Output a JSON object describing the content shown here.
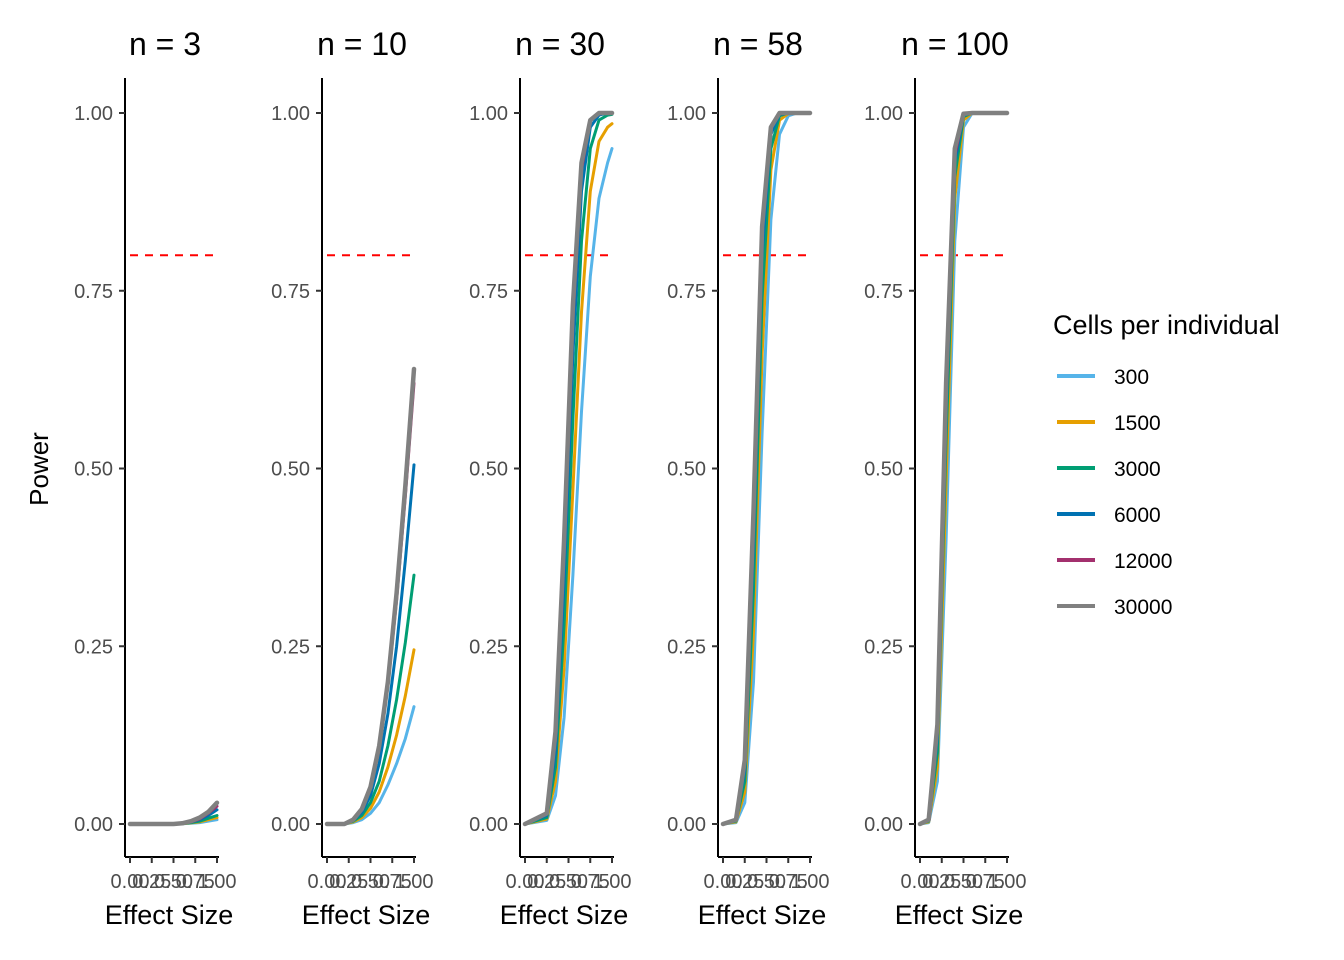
{
  "chart_data": {
    "type": "line",
    "ylabel": "Power",
    "xlabel": "Effect Size",
    "y_ticks": [
      "0.00",
      "0.25",
      "0.50",
      "0.75",
      "1.00"
    ],
    "x_ticks": [
      "0.00",
      "0.25",
      "0.50",
      "0.75",
      "1.00"
    ],
    "xlim": [
      0,
      1
    ],
    "ylim": [
      0,
      1
    ],
    "threshold": 0.8,
    "threshold_color": "#ff0000",
    "grid": false,
    "legend": {
      "title": "Cells per individual",
      "placement": "right"
    },
    "series": [
      {
        "name": "300",
        "color": "#56b4e9"
      },
      {
        "name": "1500",
        "color": "#e69f00"
      },
      {
        "name": "3000",
        "color": "#009e73"
      },
      {
        "name": "6000",
        "color": "#0072b2"
      },
      {
        "name": "12000",
        "color": "#a3306e"
      },
      {
        "name": "30000",
        "color": "#808080"
      }
    ],
    "panels": [
      {
        "title": "n = 3",
        "curves": [
          {
            "series": "300",
            "x": [
              0,
              0.25,
              0.5,
              0.6,
              0.7,
              0.8,
              0.9,
              1.0
            ],
            "y": [
              0,
              0,
              0,
              0.0003,
              0.001,
              0.002,
              0.004,
              0.006
            ]
          },
          {
            "series": "1500",
            "x": [
              0,
              0.25,
              0.5,
              0.6,
              0.7,
              0.8,
              0.9,
              1.0
            ],
            "y": [
              0,
              0,
              0,
              0.0004,
              0.0015,
              0.003,
              0.006,
              0.009
            ]
          },
          {
            "series": "3000",
            "x": [
              0,
              0.25,
              0.5,
              0.6,
              0.7,
              0.8,
              0.9,
              1.0
            ],
            "y": [
              0,
              0,
              0,
              0.0005,
              0.002,
              0.004,
              0.008,
              0.012
            ]
          },
          {
            "series": "6000",
            "x": [
              0,
              0.25,
              0.5,
              0.6,
              0.7,
              0.8,
              0.9,
              1.0
            ],
            "y": [
              0,
              0,
              0,
              0.0008,
              0.003,
              0.006,
              0.012,
              0.02
            ]
          },
          {
            "series": "12000",
            "x": [
              0,
              0.25,
              0.5,
              0.6,
              0.7,
              0.8,
              0.9,
              1.0
            ],
            "y": [
              0,
              0,
              0,
              0.001,
              0.003,
              0.007,
              0.015,
              0.025
            ]
          },
          {
            "series": "30000",
            "x": [
              0,
              0.25,
              0.5,
              0.6,
              0.7,
              0.8,
              0.9,
              1.0
            ],
            "y": [
              0,
              0,
              0,
              0.001,
              0.004,
              0.009,
              0.017,
              0.03
            ]
          }
        ]
      },
      {
        "title": "n = 10",
        "curves": [
          {
            "series": "300",
            "x": [
              0,
              0.2,
              0.3,
              0.4,
              0.5,
              0.6,
              0.7,
              0.8,
              0.9,
              1.0
            ],
            "y": [
              0,
              0,
              0.002,
              0.006,
              0.015,
              0.03,
              0.055,
              0.085,
              0.12,
              0.165
            ]
          },
          {
            "series": "1500",
            "x": [
              0,
              0.2,
              0.3,
              0.4,
              0.5,
              0.6,
              0.7,
              0.8,
              0.9,
              1.0
            ],
            "y": [
              0,
              0,
              0.003,
              0.009,
              0.022,
              0.045,
              0.08,
              0.125,
              0.18,
              0.245
            ]
          },
          {
            "series": "3000",
            "x": [
              0,
              0.2,
              0.3,
              0.4,
              0.5,
              0.6,
              0.7,
              0.8,
              0.9,
              1.0
            ],
            "y": [
              0,
              0,
              0.004,
              0.012,
              0.03,
              0.06,
              0.11,
              0.175,
              0.255,
              0.35
            ]
          },
          {
            "series": "6000",
            "x": [
              0,
              0.2,
              0.3,
              0.4,
              0.5,
              0.6,
              0.7,
              0.8,
              0.9,
              1.0
            ],
            "y": [
              0,
              0,
              0.005,
              0.016,
              0.04,
              0.085,
              0.155,
              0.25,
              0.37,
              0.505
            ]
          },
          {
            "series": "12000",
            "x": [
              0,
              0.2,
              0.3,
              0.4,
              0.5,
              0.6,
              0.7,
              0.8,
              0.9,
              1.0
            ],
            "y": [
              0,
              0,
              0.006,
              0.02,
              0.05,
              0.105,
              0.195,
              0.315,
              0.46,
              0.62
            ]
          },
          {
            "series": "30000",
            "x": [
              0,
              0.2,
              0.3,
              0.4,
              0.5,
              0.6,
              0.7,
              0.8,
              0.9,
              1.0
            ],
            "y": [
              0,
              0,
              0.006,
              0.021,
              0.052,
              0.11,
              0.2,
              0.325,
              0.475,
              0.64
            ]
          }
        ]
      },
      {
        "title": "n = 30",
        "curves": [
          {
            "series": "300",
            "x": [
              0,
              0.25,
              0.35,
              0.45,
              0.55,
              0.65,
              0.75,
              0.85,
              0.95,
              1.0
            ],
            "y": [
              0,
              0.005,
              0.04,
              0.15,
              0.35,
              0.58,
              0.77,
              0.88,
              0.93,
              0.95
            ]
          },
          {
            "series": "1500",
            "x": [
              0,
              0.25,
              0.35,
              0.45,
              0.55,
              0.65,
              0.75,
              0.85,
              0.95,
              1.0
            ],
            "y": [
              0,
              0.007,
              0.06,
              0.22,
              0.47,
              0.72,
              0.89,
              0.96,
              0.98,
              0.985
            ]
          },
          {
            "series": "3000",
            "x": [
              0,
              0.25,
              0.35,
              0.45,
              0.55,
              0.65,
              0.75,
              0.85,
              0.95,
              1.0
            ],
            "y": [
              0,
              0.009,
              0.08,
              0.28,
              0.57,
              0.82,
              0.95,
              0.99,
              0.997,
              0.998
            ]
          },
          {
            "series": "6000",
            "x": [
              0,
              0.25,
              0.35,
              0.45,
              0.55,
              0.65,
              0.75,
              0.85,
              0.95,
              1.0
            ],
            "y": [
              0,
              0.012,
              0.1,
              0.34,
              0.66,
              0.89,
              0.98,
              0.997,
              1.0,
              1.0
            ]
          },
          {
            "series": "12000",
            "x": [
              0,
              0.25,
              0.35,
              0.45,
              0.55,
              0.65,
              0.75,
              0.85,
              0.95,
              1.0
            ],
            "y": [
              0,
              0.014,
              0.12,
              0.38,
              0.71,
              0.92,
              0.99,
              0.999,
              1.0,
              1.0
            ]
          },
          {
            "series": "30000",
            "x": [
              0,
              0.25,
              0.35,
              0.45,
              0.55,
              0.65,
              0.75,
              0.85,
              0.95,
              1.0
            ],
            "y": [
              0,
              0.015,
              0.13,
              0.4,
              0.73,
              0.93,
              0.99,
              1.0,
              1.0,
              1.0
            ]
          }
        ]
      },
      {
        "title": "n = 58",
        "curves": [
          {
            "series": "300",
            "x": [
              0,
              0.15,
              0.25,
              0.35,
              0.45,
              0.55,
              0.65,
              0.75,
              0.85,
              1.0
            ],
            "y": [
              0,
              0.002,
              0.03,
              0.2,
              0.55,
              0.85,
              0.97,
              0.996,
              1.0,
              1.0
            ]
          },
          {
            "series": "1500",
            "x": [
              0,
              0.15,
              0.25,
              0.35,
              0.45,
              0.55,
              0.65,
              0.75,
              0.85,
              1.0
            ],
            "y": [
              0,
              0.003,
              0.045,
              0.27,
              0.66,
              0.92,
              0.99,
              0.999,
              1.0,
              1.0
            ]
          },
          {
            "series": "3000",
            "x": [
              0,
              0.15,
              0.25,
              0.35,
              0.45,
              0.55,
              0.65,
              0.75,
              0.85,
              1.0
            ],
            "y": [
              0,
              0.004,
              0.06,
              0.33,
              0.74,
              0.95,
              0.996,
              1.0,
              1.0,
              1.0
            ]
          },
          {
            "series": "6000",
            "x": [
              0,
              0.15,
              0.25,
              0.35,
              0.45,
              0.55,
              0.65,
              0.75,
              0.85,
              1.0
            ],
            "y": [
              0,
              0.005,
              0.075,
              0.39,
              0.8,
              0.97,
              0.998,
              1.0,
              1.0,
              1.0
            ]
          },
          {
            "series": "12000",
            "x": [
              0,
              0.15,
              0.25,
              0.35,
              0.45,
              0.55,
              0.65,
              0.75,
              0.85,
              1.0
            ],
            "y": [
              0,
              0.006,
              0.085,
              0.42,
              0.83,
              0.98,
              0.999,
              1.0,
              1.0,
              1.0
            ]
          },
          {
            "series": "30000",
            "x": [
              0,
              0.15,
              0.25,
              0.35,
              0.45,
              0.55,
              0.65,
              0.75,
              0.85,
              1.0
            ],
            "y": [
              0,
              0.006,
              0.09,
              0.44,
              0.84,
              0.98,
              1.0,
              1.0,
              1.0,
              1.0
            ]
          }
        ]
      },
      {
        "title": "n = 100",
        "curves": [
          {
            "series": "300",
            "x": [
              0,
              0.1,
              0.2,
              0.3,
              0.4,
              0.5,
              0.6,
              0.7,
              1.0
            ],
            "y": [
              0,
              0.002,
              0.06,
              0.4,
              0.82,
              0.98,
              1.0,
              1.0,
              1.0
            ]
          },
          {
            "series": "1500",
            "x": [
              0,
              0.1,
              0.2,
              0.3,
              0.4,
              0.5,
              0.6,
              0.7,
              1.0
            ],
            "y": [
              0,
              0.003,
              0.08,
              0.48,
              0.88,
              0.99,
              1.0,
              1.0,
              1.0
            ]
          },
          {
            "series": "3000",
            "x": [
              0,
              0.1,
              0.2,
              0.3,
              0.4,
              0.5,
              0.6,
              0.7,
              1.0
            ],
            "y": [
              0,
              0.004,
              0.1,
              0.54,
              0.91,
              0.995,
              1.0,
              1.0,
              1.0
            ]
          },
          {
            "series": "6000",
            "x": [
              0,
              0.1,
              0.2,
              0.3,
              0.4,
              0.5,
              0.6,
              0.7,
              1.0
            ],
            "y": [
              0,
              0.005,
              0.12,
              0.58,
              0.93,
              0.997,
              1.0,
              1.0,
              1.0
            ]
          },
          {
            "series": "12000",
            "x": [
              0,
              0.1,
              0.2,
              0.3,
              0.4,
              0.5,
              0.6,
              0.7,
              1.0
            ],
            "y": [
              0,
              0.005,
              0.13,
              0.6,
              0.94,
              0.998,
              1.0,
              1.0,
              1.0
            ]
          },
          {
            "series": "30000",
            "x": [
              0,
              0.1,
              0.2,
              0.3,
              0.4,
              0.5,
              0.6,
              0.7,
              1.0
            ],
            "y": [
              0,
              0.006,
              0.14,
              0.62,
              0.95,
              0.999,
              1.0,
              1.0,
              1.0
            ]
          }
        ]
      }
    ]
  }
}
